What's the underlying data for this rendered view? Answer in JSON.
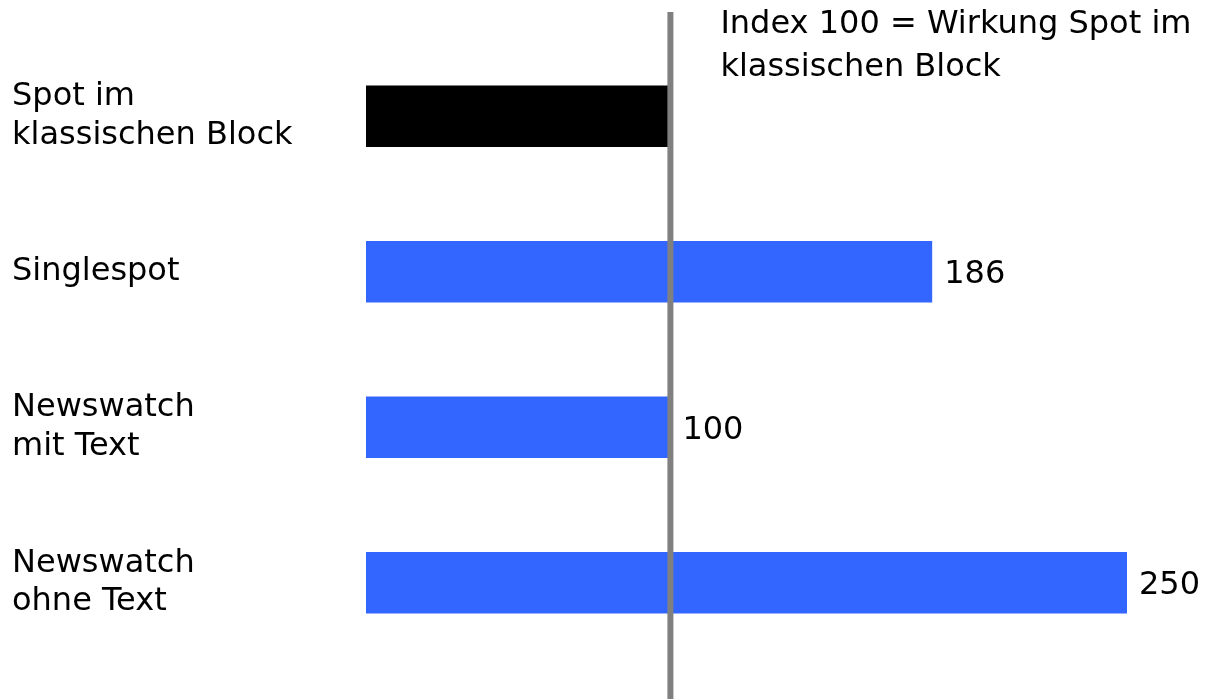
{
  "chart_data": {
    "type": "bar",
    "orientation": "horizontal",
    "categories": [
      "Spot im\nklassischen Block",
      "Singlespot",
      "Newswatch\nmit Text",
      "Newswatch\nohne Text"
    ],
    "values": [
      100,
      186,
      100,
      250
    ],
    "colors": [
      "#000000",
      "#3366ff",
      "#3366ff",
      "#3366ff"
    ],
    "value_labels": [
      null,
      "186",
      "100",
      "250"
    ],
    "tick_labels": "y",
    "legend": false,
    "ref_lines": [
      {
        "axis": "x",
        "value": 100,
        "label": "Index 100 = Wirkung Spot im klassischen Block",
        "color": "#808080"
      }
    ]
  }
}
